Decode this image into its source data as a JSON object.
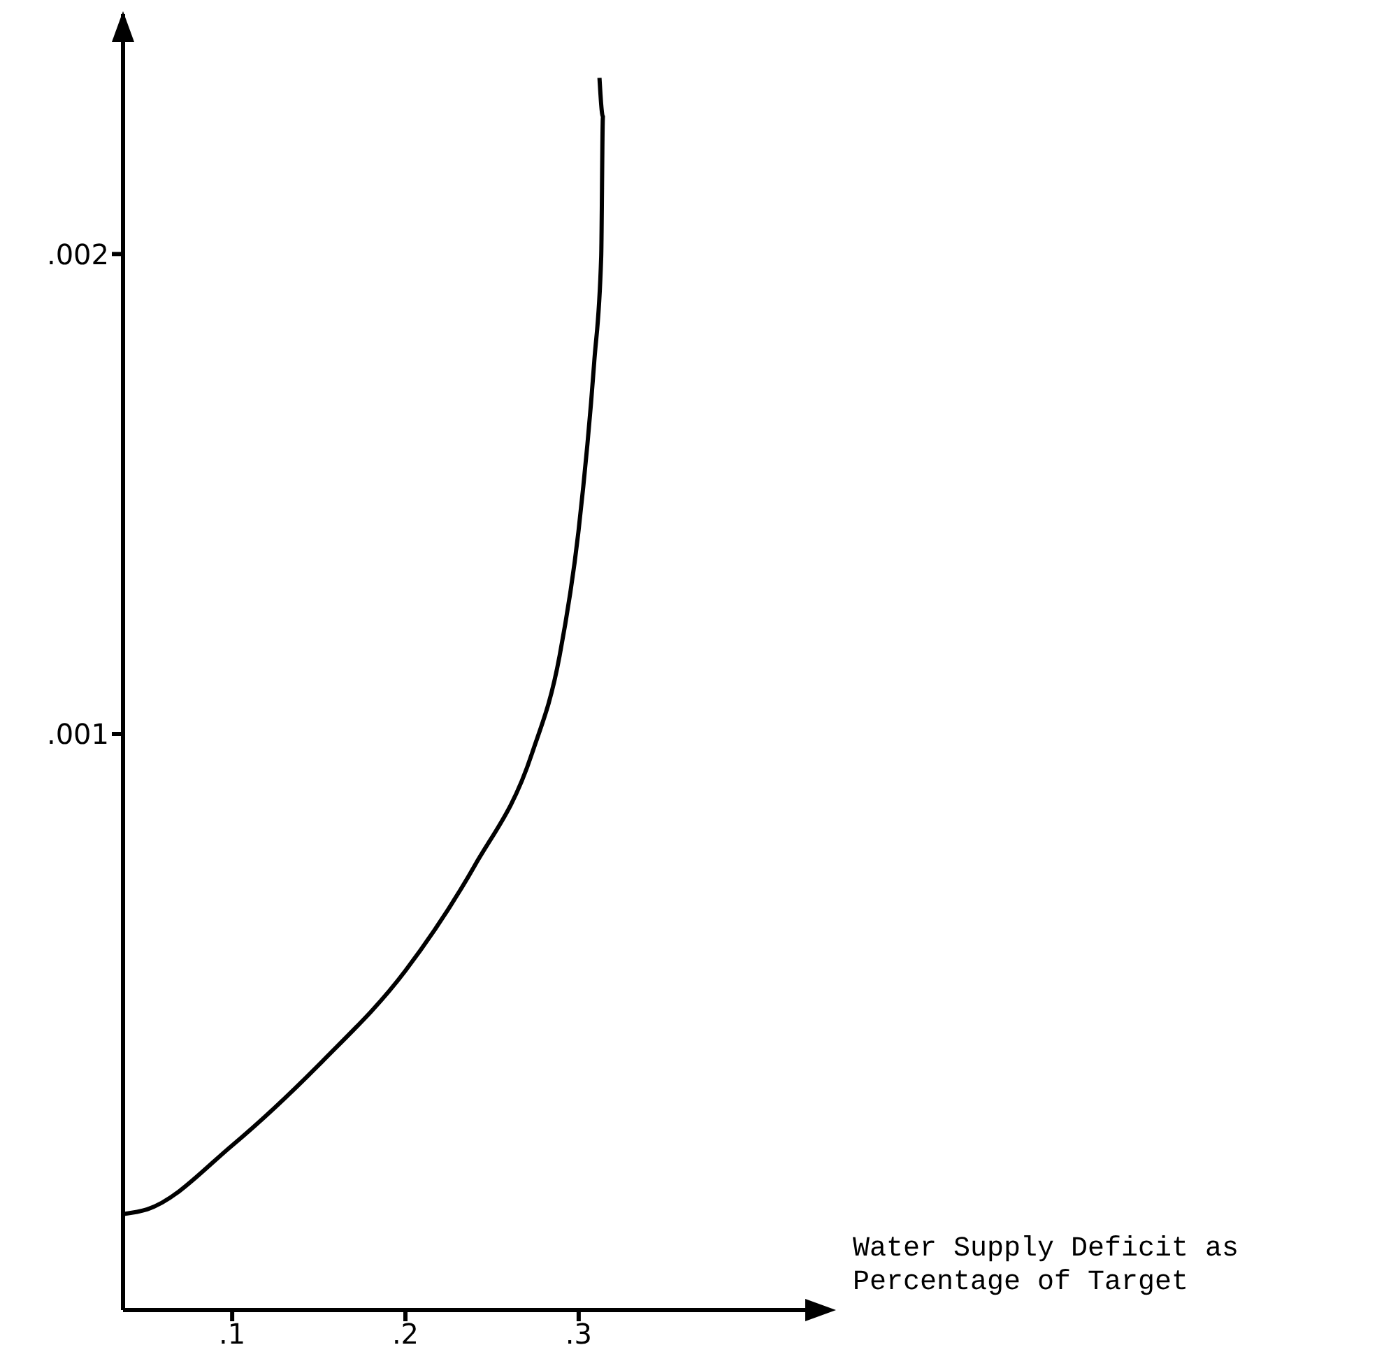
{
  "chart_data": {
    "type": "line",
    "xlabel": "Water Supply Deficit as Percentage of Target",
    "color": "#000000",
    "x": [
      0.037,
      0.051,
      0.1,
      0.152,
      0.2,
      0.24,
      0.273,
      0.289,
      0.3,
      0.309,
      0.313,
      0.314,
      0.312
    ],
    "values": [
      0,
      1e-05,
      0.000143,
      0.000318,
      0.000507,
      0.000726,
      0.000959,
      0.001163,
      0.001426,
      0.001776,
      0.001994,
      0.002286,
      0.002367
    ],
    "xlim": [
      0.037,
      0.434
    ],
    "ylim": [
      -0.0002,
      0.0025
    ],
    "xticks": [
      {
        "value": 0.1,
        "label": ".1"
      },
      {
        "value": 0.2,
        "label": ".2"
      },
      {
        "value": 0.3,
        "label": ".3"
      }
    ],
    "yticks": [
      {
        "value": 0.001,
        "label": ".001"
      },
      {
        "value": 0.002,
        "label": ".002"
      }
    ],
    "grid": false,
    "marker": "none",
    "line_style": "solid"
  }
}
